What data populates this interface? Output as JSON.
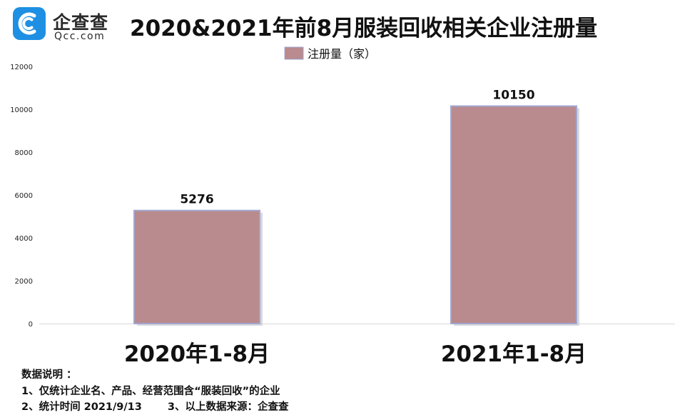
{
  "logo": {
    "cn": "企查查",
    "en": "Qcc.com"
  },
  "title": "2020&2021年前8月服装回收相关企业注册量",
  "chart_data": {
    "type": "bar",
    "title": "2020&2021年前8月服装回收相关企业注册量",
    "categories": [
      "2020年1-8月",
      "2021年1-8月"
    ],
    "series": [
      {
        "name": "注册量（家）",
        "values": [
          5276,
          10150
        ],
        "color": "#b98a8e"
      }
    ],
    "data_labels": [
      "5276",
      "10150"
    ],
    "y_ticks": [
      "0",
      "2000",
      "4000",
      "6000",
      "8000",
      "10000",
      "12000"
    ],
    "ylim": [
      0,
      12000
    ],
    "legend_position": "top-center",
    "grid": false,
    "xlabel": "",
    "ylabel": ""
  },
  "notes": {
    "heading": "数据说明 ：",
    "line1": "1、仅统计企业名、产品、经营范围含“服装回收”的企业",
    "line2a": "2、统计时间  2021/9/13",
    "line2b": "3、以上数据来源：企查查"
  },
  "colors": {
    "bar": "#b98a8e",
    "bar_border": "#a3a7cf",
    "logo_blue": "#1e8fe3"
  }
}
